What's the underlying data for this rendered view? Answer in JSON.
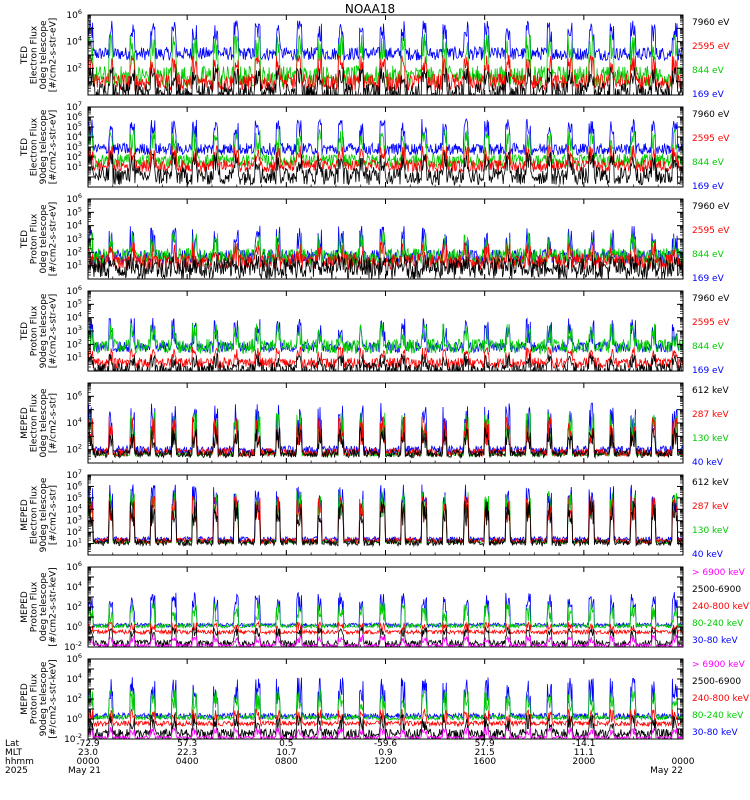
{
  "chart_data": {
    "type": "line",
    "title": "NOAA18",
    "panels": [
      {
        "ylabel": [
          "TED",
          "Electron Flux",
          "0deg telescope",
          "[#/cm2-s-str-eV]"
        ],
        "ymin_exp": 0,
        "ymax_exp": 6,
        "label_exps": [
          2,
          4,
          6
        ],
        "yscale": "log",
        "series": [
          {
            "name": "7960 eV",
            "color": "#000000",
            "peaks": [
              16,
              56
            ],
            "spikes": [
              0.7,
              2.1
            ],
            "base": [
              -0.5,
              0.9
            ]
          },
          {
            "name": "2595 eV",
            "color": "#ff0000",
            "peaks": [
              35,
              65
            ],
            "spikes": [
              1.5,
              3.0
            ],
            "base": [
              0.3,
              1.6
            ]
          },
          {
            "name": "844 eV",
            "color": "#00cc00",
            "peaks": [
              52,
              70
            ],
            "spikes": [
              2.5,
              4.6
            ],
            "base": [
              0.6,
              2.2
            ]
          },
          {
            "name": "169 eV",
            "color": "#0000ff",
            "peaks": [
              68,
              82
            ],
            "spikes": [
              4.0,
              5.6
            ],
            "base": [
              2.6,
              3.6
            ]
          }
        ]
      },
      {
        "ylabel": [
          "TED",
          "Electron Flux",
          "90deg telescope",
          "[#/cm2-s-str-eV]"
        ],
        "ymin_exp": -1,
        "ymax_exp": 7,
        "label_exps": [
          1,
          2,
          3,
          4,
          5,
          6,
          7
        ],
        "yscale": "log",
        "series": [
          {
            "name": "7960 eV",
            "color": "#000000",
            "peaks": [
              16,
              60
            ],
            "spikes": [
              0.5,
              2.5
            ],
            "base": [
              -0.8,
              1.0
            ]
          },
          {
            "name": "2595 eV",
            "color": "#ff0000",
            "peaks": [
              35,
              66
            ],
            "spikes": [
              1.5,
              3.2
            ],
            "base": [
              0.5,
              1.7
            ]
          },
          {
            "name": "844 eV",
            "color": "#00cc00",
            "peaks": [
              52,
              72
            ],
            "spikes": [
              2.5,
              4.8
            ],
            "base": [
              1.0,
              2.3
            ]
          },
          {
            "name": "169 eV",
            "color": "#0000ff",
            "peaks": [
              68,
              84
            ],
            "spikes": [
              4.0,
              5.8
            ],
            "base": [
              2.2,
              3.4
            ]
          }
        ]
      },
      {
        "ylabel": [
          "TED",
          "Proton Flux",
          "0deg telescope",
          "[#/cm2-s-str-eV]"
        ],
        "ymin_exp": 0,
        "ymax_exp": 6,
        "label_exps": [
          1,
          2,
          3,
          4,
          5,
          6
        ],
        "yscale": "log",
        "series": [
          {
            "name": "7960 eV",
            "color": "#000000",
            "peaks": [
              60,
              140
            ],
            "spikes": [
              0.3,
              1.9
            ],
            "base": [
              0.0,
              1.6
            ]
          },
          {
            "name": "2595 eV",
            "color": "#ff0000",
            "peaks": [
              60,
              120
            ],
            "spikes": [
              1.0,
              2.8
            ],
            "base": [
              0.7,
              1.9
            ]
          },
          {
            "name": "844 eV",
            "color": "#00cc00",
            "peaks": [
              60,
              110
            ],
            "spikes": [
              1.6,
              3.5
            ],
            "base": [
              1.0,
              2.3
            ]
          },
          {
            "name": "169 eV",
            "color": "#0000ff",
            "peaks": [
              50,
              90
            ],
            "spikes": [
              1.8,
              4.0
            ],
            "base": [
              1.1,
              2.2
            ]
          }
        ]
      },
      {
        "ylabel": [
          "TED",
          "Proton Flux",
          "90deg telescope",
          "[#/cm2-s-str-eV]"
        ],
        "ymin_exp": 0,
        "ymax_exp": 6,
        "label_exps": [
          1,
          2,
          3,
          4,
          5,
          6
        ],
        "yscale": "log",
        "series": [
          {
            "name": "7960 eV",
            "color": "#000000",
            "peaks": [
              30,
              70
            ],
            "spikes": [
              0.2,
              1.3
            ],
            "base": [
              -0.4,
              0.6
            ]
          },
          {
            "name": "2595 eV",
            "color": "#ff0000",
            "peaks": [
              20,
              40
            ],
            "spikes": [
              0.8,
              1.8
            ],
            "base": [
              0.2,
              1.0
            ]
          },
          {
            "name": "844 eV",
            "color": "#00cc00",
            "peaks": [
              60,
              110
            ],
            "spikes": [
              1.8,
              3.6
            ],
            "base": [
              1.3,
              2.4
            ]
          },
          {
            "name": "169 eV",
            "color": "#0000ff",
            "peaks": [
              60,
              110
            ],
            "spikes": [
              2.0,
              4.0
            ],
            "base": [
              1.4,
              2.2
            ]
          }
        ]
      },
      {
        "ylabel": [
          "MEPED",
          "Electron Flux",
          "0deg telescope",
          "[#/cm2-s-str]"
        ],
        "ymin_exp": 1,
        "ymax_exp": 7,
        "label_exps": [
          2,
          4,
          6
        ],
        "yscale": "log",
        "series": [
          {
            "name": "612 keV",
            "color": "#000000",
            "peaks": [
              30,
              70
            ],
            "spikes": [
              2.0,
              3.7
            ],
            "base": [
              1.4,
              2.0
            ]
          },
          {
            "name": "287 keV",
            "color": "#ff0000",
            "peaks": [
              30,
              70
            ],
            "spikes": [
              2.3,
              4.5
            ],
            "base": [
              1.5,
              2.1
            ]
          },
          {
            "name": "130 keV",
            "color": "#00cc00",
            "peaks": [
              30,
              70
            ],
            "spikes": [
              2.6,
              4.8
            ],
            "base": [
              1.5,
              1.8
            ]
          },
          {
            "name": "40 keV",
            "color": "#0000ff",
            "peaks": [
              40,
              90
            ],
            "spikes": [
              3.0,
              5.5
            ],
            "base": [
              1.6,
              2.3
            ]
          }
        ]
      },
      {
        "ylabel": [
          "MEPED",
          "Electron Flux",
          "90deg telescope",
          "[#/cm2-s-str]"
        ],
        "ymin_exp": 0,
        "ymax_exp": 7,
        "label_exps": [
          1,
          2,
          3,
          4,
          5,
          6,
          7
        ],
        "yscale": "log",
        "series": [
          {
            "name": "612 keV",
            "color": "#000000",
            "peaks": [
              40,
              80
            ],
            "spikes": [
              2.5,
              4.8
            ],
            "base": [
              0.8,
              1.4
            ]
          },
          {
            "name": "287 keV",
            "color": "#ff0000",
            "peaks": [
              40,
              80
            ],
            "spikes": [
              3.0,
              5.2
            ],
            "base": [
              1.0,
              1.5
            ]
          },
          {
            "name": "130 keV",
            "color": "#00cc00",
            "peaks": [
              40,
              80
            ],
            "spikes": [
              3.3,
              5.6
            ],
            "base": [
              1.0,
              1.3
            ]
          },
          {
            "name": "40 keV",
            "color": "#0000ff",
            "peaks": [
              40,
              80
            ],
            "spikes": [
              3.6,
              6.2
            ],
            "base": [
              1.1,
              1.6
            ]
          }
        ]
      },
      {
        "ylabel": [
          "MEPED",
          "Proton Flux",
          "0deg telescope",
          "[#/cm2-s-str-keV]"
        ],
        "ymin_exp": -2,
        "ymax_exp": 6,
        "label_exps": [
          -2,
          0,
          2,
          4,
          6
        ],
        "yscale": "log",
        "series": [
          {
            "name": "> 6900 keV",
            "color": "#ff00ff",
            "peaks": [
              15,
              40
            ],
            "spikes": [
              -1.6,
              -0.8
            ],
            "base": [
              -2.0,
              -1.7
            ]
          },
          {
            "name": "2500-6900",
            "color": "#000000",
            "peaks": [
              15,
              40
            ],
            "spikes": [
              -1.0,
              0.0
            ],
            "base": [
              -2.0,
              -1.3
            ]
          },
          {
            "name": "240-800 keV",
            "color": "#ff0000",
            "peaks": [
              30,
              60
            ],
            "spikes": [
              -0.4,
              0.5
            ],
            "base": [
              -0.7,
              -0.3
            ]
          },
          {
            "name": "80-240 keV",
            "color": "#00cc00",
            "peaks": [
              30,
              60
            ],
            "spikes": [
              0.5,
              2.4
            ],
            "base": [
              -0.1,
              0.3
            ]
          },
          {
            "name": "30-80 keV",
            "color": "#0000ff",
            "peaks": [
              30,
              60
            ],
            "spikes": [
              1.5,
              3.5
            ],
            "base": [
              0.0,
              0.4
            ]
          }
        ]
      },
      {
        "ylabel": [
          "MEPED",
          "Proton Flux",
          "90deg telescope",
          "[#/cm2-s-str-keV]"
        ],
        "ymin_exp": -2,
        "ymax_exp": 6,
        "label_exps": [
          -2,
          0,
          2,
          4,
          6
        ],
        "yscale": "log",
        "series": [
          {
            "name": "> 6900 keV",
            "color": "#ff00ff",
            "peaks": [
              15,
              40
            ],
            "spikes": [
              -1.6,
              -0.8
            ],
            "base": [
              -2.0,
              -1.7
            ]
          },
          {
            "name": "2500-6900",
            "color": "#000000",
            "peaks": [
              15,
              40
            ],
            "spikes": [
              -1.2,
              0.5
            ],
            "base": [
              -2.0,
              -1.0
            ]
          },
          {
            "name": "240-800 keV",
            "color": "#ff0000",
            "peaks": [
              30,
              60
            ],
            "spikes": [
              -0.4,
              1.0
            ],
            "base": [
              -0.7,
              -0.2
            ]
          },
          {
            "name": "80-240 keV",
            "color": "#00cc00",
            "peaks": [
              30,
              60
            ],
            "spikes": [
              0.8,
              3.0
            ],
            "base": [
              -0.1,
              0.4
            ]
          },
          {
            "name": "30-80 keV",
            "color": "#0000ff",
            "peaks": [
              30,
              60
            ],
            "spikes": [
              1.5,
              4.2
            ],
            "base": [
              0.0,
              0.6
            ]
          }
        ]
      }
    ],
    "x_axis": {
      "row_labels": [
        "Lat",
        "MLT",
        "hhmm",
        "2025"
      ],
      "ticks": [
        {
          "hour": 0,
          "lat": "-72.9",
          "mlt": "23.0",
          "hhmm": "0000",
          "date": "May 21"
        },
        {
          "hour": 4,
          "lat": "57.3",
          "mlt": "22.3",
          "hhmm": "0400",
          "date": ""
        },
        {
          "hour": 8,
          "lat": "0.5",
          "mlt": "10.7",
          "hhmm": "0800",
          "date": ""
        },
        {
          "hour": 12,
          "lat": "-59.6",
          "mlt": "0.9",
          "hhmm": "1200",
          "date": ""
        },
        {
          "hour": 16,
          "lat": "57.9",
          "mlt": "21.5",
          "hhmm": "1600",
          "date": ""
        },
        {
          "hour": 20,
          "lat": "-14.1",
          "mlt": "11.1",
          "hhmm": "2000",
          "date": ""
        },
        {
          "hour": 24,
          "lat": "",
          "mlt": "",
          "hhmm": "0000",
          "date": "May 22"
        }
      ],
      "xlim": [
        0,
        24
      ],
      "unit": "hours UT"
    }
  }
}
